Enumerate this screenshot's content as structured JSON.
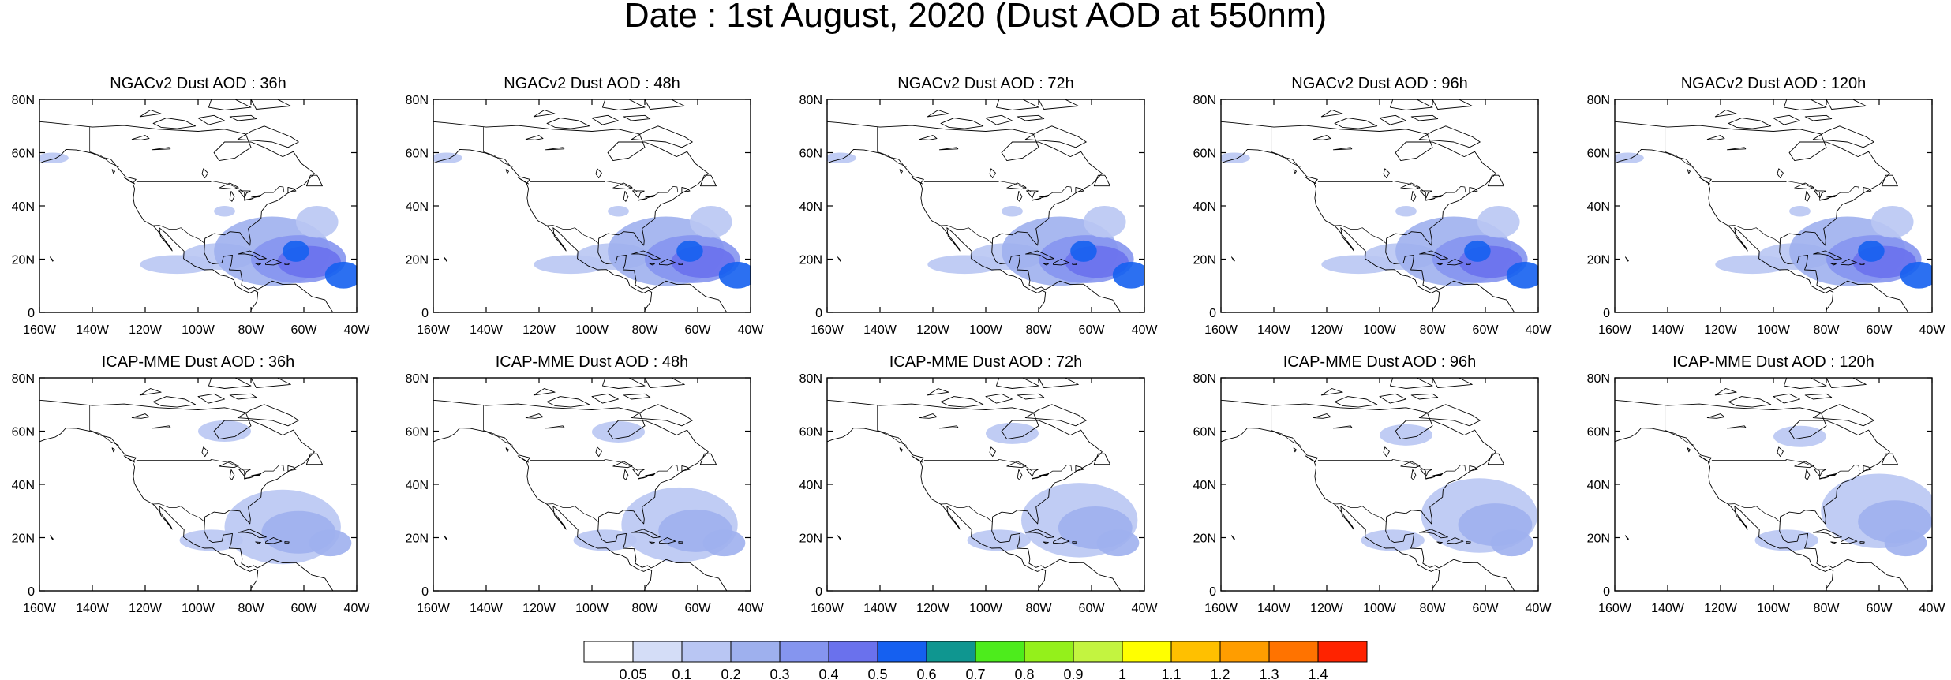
{
  "title": "Date : 1st August, 2020 (Dust AOD at 550nm)",
  "lat_ticks": [
    "0",
    "20N",
    "40N",
    "60N",
    "80N"
  ],
  "lon_ticks": [
    "160W",
    "140W",
    "120W",
    "100W",
    "80W",
    "60W",
    "40W"
  ],
  "panels": [
    {
      "title": "NGACv2 Dust AOD : 36h",
      "model": "NGAC",
      "lead": 36
    },
    {
      "title": "NGACv2 Dust AOD : 48h",
      "model": "NGAC",
      "lead": 48
    },
    {
      "title": "NGACv2 Dust AOD : 72h",
      "model": "NGAC",
      "lead": 72
    },
    {
      "title": "NGACv2 Dust AOD : 96h",
      "model": "NGAC",
      "lead": 96
    },
    {
      "title": "NGACv2 Dust AOD : 120h",
      "model": "NGAC",
      "lead": 120
    },
    {
      "title": "ICAP-MME Dust AOD : 36h",
      "model": "ICAP",
      "lead": 36
    },
    {
      "title": "ICAP-MME Dust AOD : 48h",
      "model": "ICAP",
      "lead": 48
    },
    {
      "title": "ICAP-MME Dust AOD : 72h",
      "model": "ICAP",
      "lead": 72
    },
    {
      "title": "ICAP-MME Dust AOD : 96h",
      "model": "ICAP",
      "lead": 96
    },
    {
      "title": "ICAP-MME Dust AOD : 120h",
      "model": "ICAP",
      "lead": 120
    }
  ],
  "colorbar": {
    "levels": [
      "0.05",
      "0.1",
      "0.2",
      "0.3",
      "0.4",
      "0.5",
      "0.6",
      "0.7",
      "0.8",
      "0.9",
      "1",
      "1.1",
      "1.2",
      "1.3",
      "1.4"
    ],
    "colors": [
      "#ffffff",
      "#d4ddf7",
      "#b9c6f3",
      "#9eb0ee",
      "#8595ef",
      "#6a71ed",
      "#1560f0",
      "#0f9690",
      "#4dec1c",
      "#94f01b",
      "#c3f440",
      "#ffff00",
      "#ffc000",
      "#ff9d00",
      "#ff7300",
      "#ff2300"
    ]
  },
  "colors": {
    "land_outline": "#000000",
    "background": "#ffffff"
  }
}
